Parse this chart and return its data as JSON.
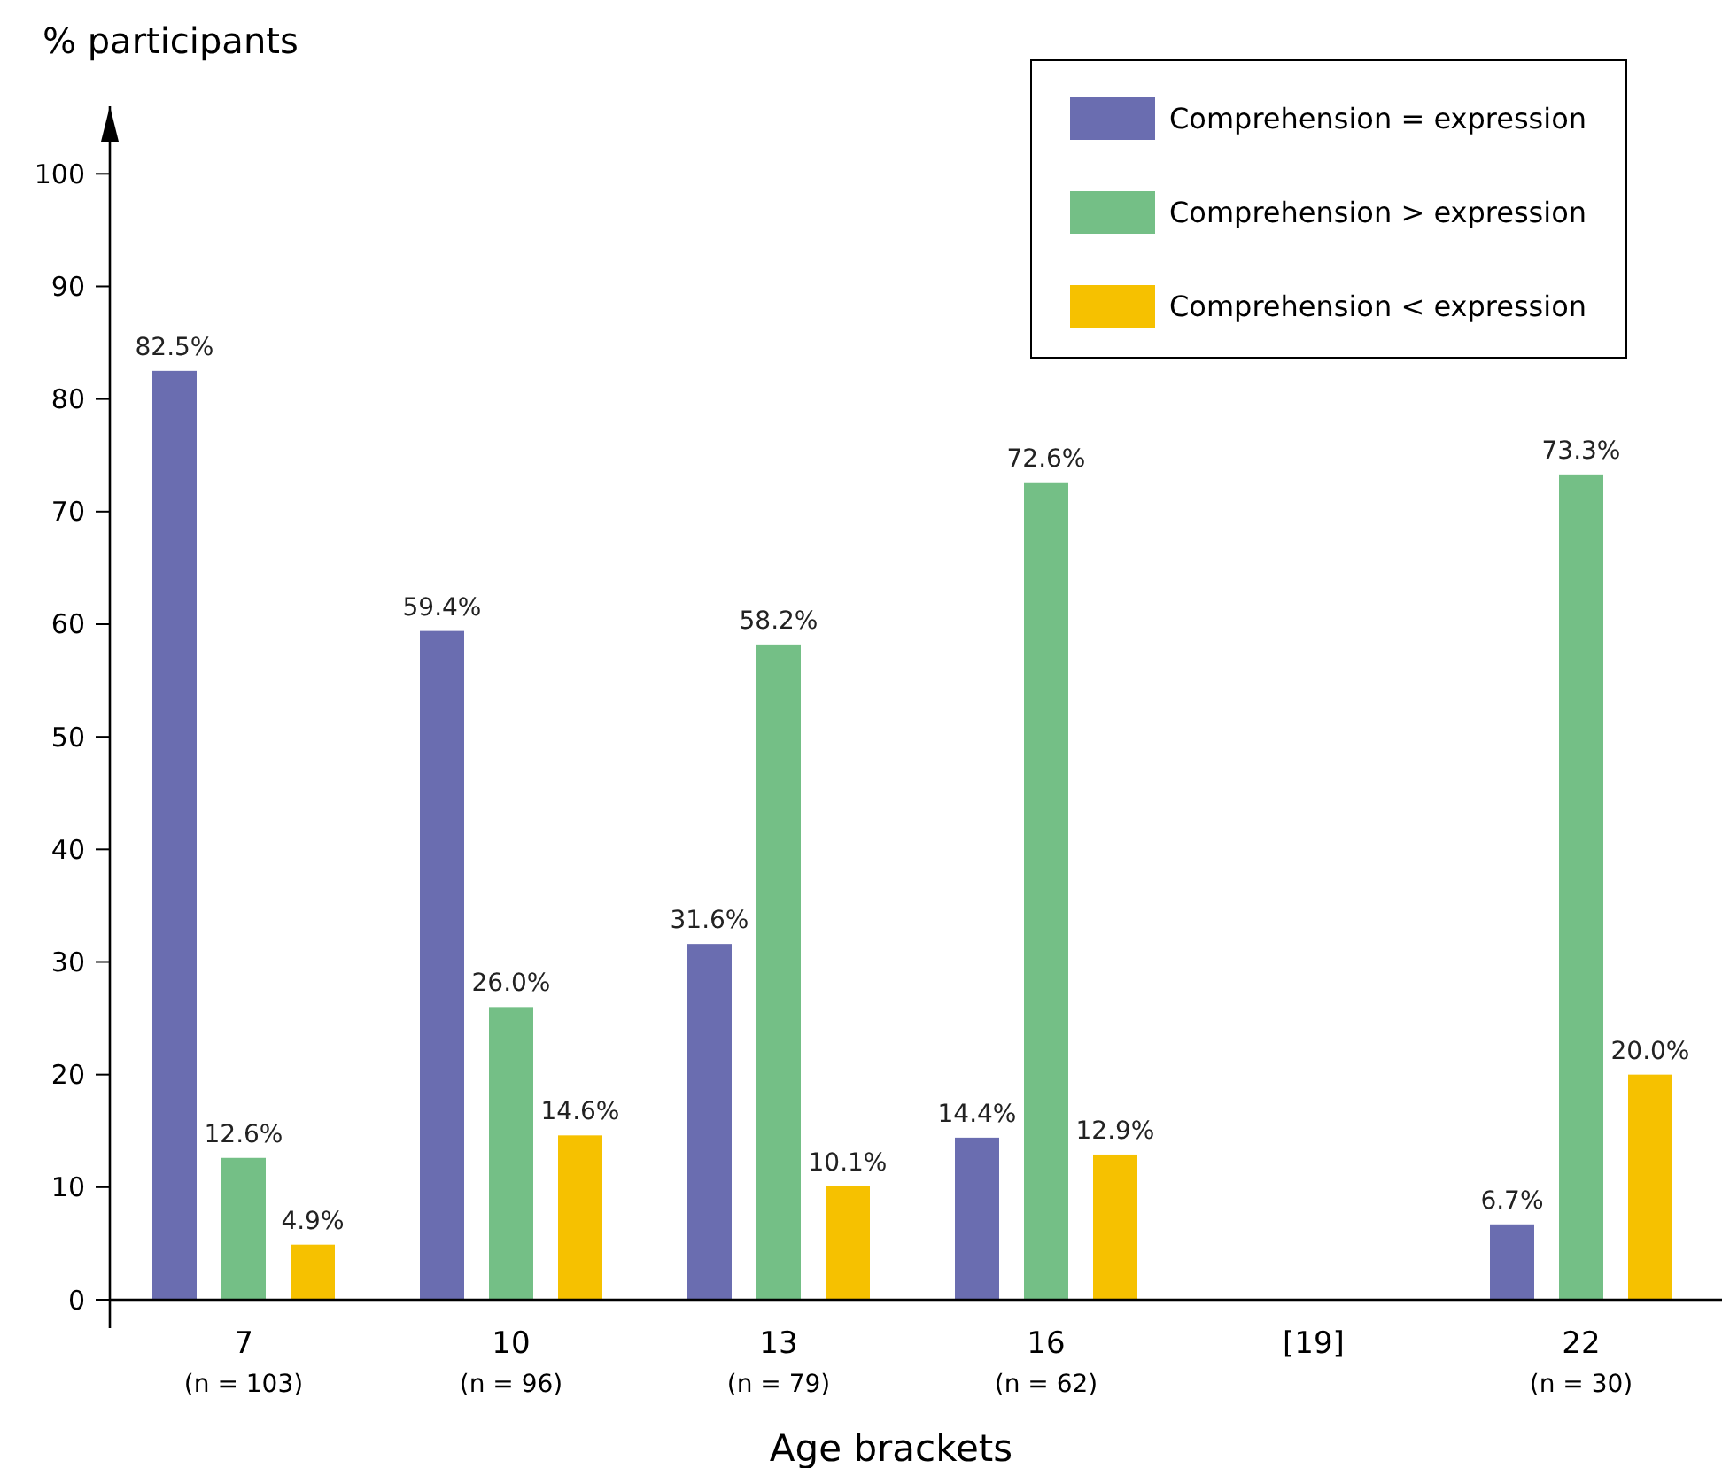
{
  "chart_data": {
    "type": "bar",
    "xlabel": "Age brackets",
    "ylabel": "% participants",
    "categories": [
      "7\n(n = 103)",
      "10\n(n = 96)",
      "13\n(n = 79)",
      "16\n(n = 62)",
      "[19]",
      "22\n(n = 30)"
    ],
    "series": [
      {
        "name": "Comprehension = expression",
        "color": "#6a6db0",
        "values": [
          82.5,
          59.4,
          31.6,
          14.4,
          null,
          6.7
        ],
        "value_labels": [
          "82.5%",
          "59.4%",
          "31.6%",
          "14.4%",
          null,
          "6.7%"
        ]
      },
      {
        "name": "Comprehension > expression",
        "color": "#74bf86",
        "values": [
          12.6,
          26.0,
          58.2,
          72.6,
          null,
          73.3
        ],
        "value_labels": [
          "12.6%",
          "26.0%",
          "58.2%",
          "72.6%",
          null,
          "73.3%"
        ]
      },
      {
        "name": "Comprehension < expression",
        "color": "#f6c100",
        "values": [
          4.9,
          14.6,
          10.1,
          12.9,
          null,
          20.0
        ],
        "value_labels": [
          "4.9%",
          "14.6%",
          "10.1%",
          "12.9%",
          null,
          "20.0%"
        ]
      }
    ],
    "ylim": [
      0,
      106
    ],
    "yticks": [
      0,
      10,
      20,
      30,
      40,
      50,
      60,
      70,
      80,
      90,
      100
    ],
    "legend": "top right",
    "grid": false
  }
}
